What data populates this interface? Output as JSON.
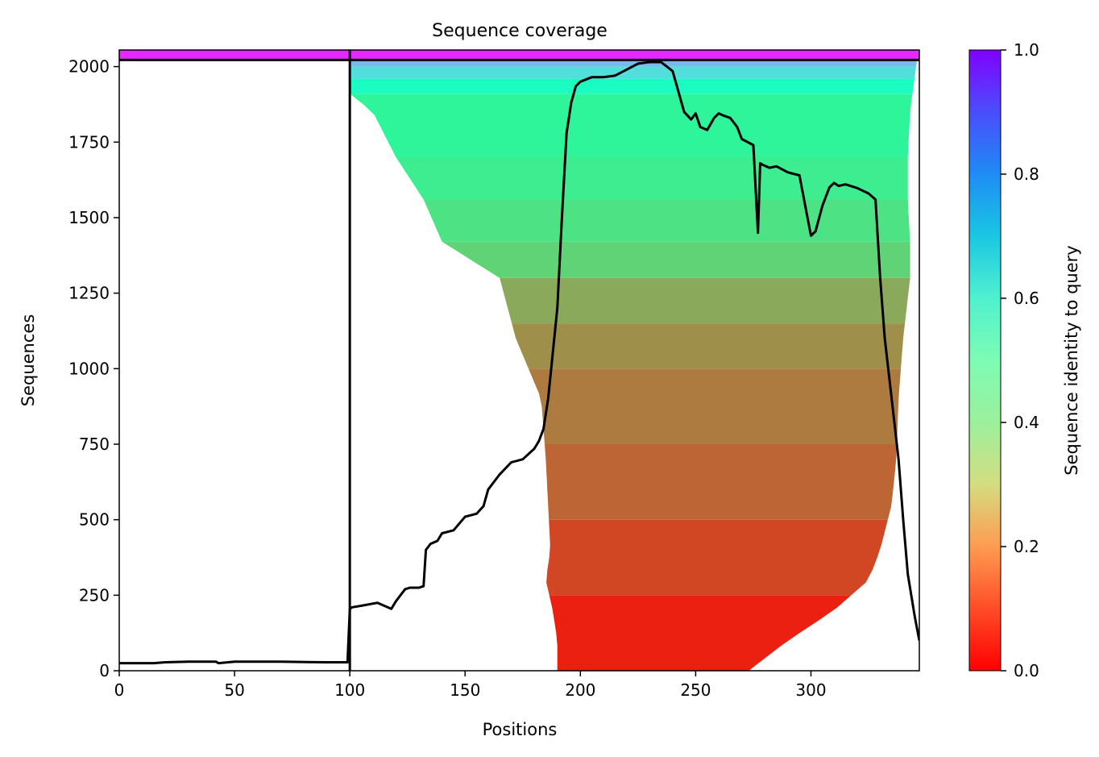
{
  "chart_data": {
    "type": "heatmap",
    "title": "Sequence coverage",
    "xlabel": "Positions",
    "ylabel": "Sequences",
    "xlim": [
      0,
      347
    ],
    "ylim": [
      0,
      2055
    ],
    "x_ticks": [
      0,
      50,
      100,
      150,
      200,
      250,
      300
    ],
    "y_ticks": [
      0,
      250,
      500,
      750,
      1000,
      1250,
      1500,
      1750,
      2000
    ],
    "colorbar": {
      "label": "Sequence identity to query",
      "range": [
        0.0,
        1.0
      ],
      "ticks": [
        "0.0",
        "0.2",
        "0.4",
        "0.6",
        "0.8",
        "1.0"
      ],
      "colormap": "rainbow_r"
    },
    "vertical_line_x": 100,
    "horizontal_line_y": 2022,
    "query_rows": {
      "from": 2022,
      "to": 2055,
      "identity": 0.95
    },
    "identity_bands": [
      {
        "y0": 0,
        "y1": 250,
        "identity": 0.04
      },
      {
        "y0": 250,
        "y1": 500,
        "identity": 0.09
      },
      {
        "y0": 500,
        "y1": 750,
        "identity": 0.13
      },
      {
        "y0": 750,
        "y1": 1000,
        "identity": 0.16
      },
      {
        "y0": 1000,
        "y1": 1150,
        "identity": 0.19
      },
      {
        "y0": 1150,
        "y1": 1300,
        "identity": 0.23
      },
      {
        "y0": 1300,
        "y1": 1420,
        "identity": 0.31
      },
      {
        "y0": 1420,
        "y1": 1560,
        "identity": 0.35
      },
      {
        "y0": 1560,
        "y1": 1700,
        "identity": 0.38
      },
      {
        "y0": 1700,
        "y1": 1910,
        "identity": 0.41
      },
      {
        "y0": 1910,
        "y1": 1960,
        "identity": 0.55
      },
      {
        "y0": 1960,
        "y1": 2000,
        "identity": 0.66
      },
      {
        "y0": 2000,
        "y1": 2022,
        "identity": 0.74
      }
    ],
    "coverage_extent": [
      {
        "y": 0,
        "x0": 190,
        "x1": 273
      },
      {
        "y": 100,
        "x0": 190,
        "x1": 290
      },
      {
        "y": 200,
        "x0": 188,
        "x1": 310
      },
      {
        "y": 300,
        "x0": 185,
        "x1": 325
      },
      {
        "y": 400,
        "x0": 187,
        "x1": 330
      },
      {
        "y": 550,
        "x0": 186,
        "x1": 335
      },
      {
        "y": 700,
        "x0": 185,
        "x1": 337
      },
      {
        "y": 900,
        "x0": 183,
        "x1": 338
      },
      {
        "y": 1100,
        "x0": 172,
        "x1": 340
      },
      {
        "y": 1300,
        "x0": 165,
        "x1": 343
      },
      {
        "y": 1420,
        "x0": 140,
        "x1": 343
      },
      {
        "y": 1560,
        "x0": 132,
        "x1": 342
      },
      {
        "y": 1700,
        "x0": 120,
        "x1": 342
      },
      {
        "y": 1850,
        "x0": 110,
        "x1": 343
      },
      {
        "y": 1910,
        "x0": 100,
        "x1": 344
      },
      {
        "y": 2022,
        "x0": 100,
        "x1": 346
      }
    ],
    "series": [
      {
        "type": "line",
        "color": "#000000",
        "x": [
          0,
          15,
          20,
          30,
          42,
          43,
          50,
          70,
          90,
          99,
          100,
          101,
          105,
          112,
          118,
          120,
          124,
          126,
          130,
          132,
          133,
          135,
          138,
          140,
          145,
          150,
          155,
          158,
          160,
          165,
          170,
          175,
          180,
          182,
          184,
          186,
          188,
          190,
          192,
          194,
          196,
          198,
          200,
          205,
          210,
          215,
          220,
          225,
          230,
          235,
          240,
          245,
          248,
          250,
          252,
          255,
          258,
          260,
          262,
          265,
          268,
          270,
          275,
          277,
          278,
          279,
          282,
          285,
          290,
          295,
          300,
          302,
          305,
          308,
          310,
          312,
          315,
          320,
          325,
          328,
          330,
          332,
          335,
          338,
          340,
          342,
          345,
          347
        ],
        "y": [
          25,
          25,
          28,
          30,
          30,
          25,
          30,
          30,
          28,
          28,
          205,
          210,
          215,
          225,
          205,
          230,
          270,
          275,
          275,
          280,
          400,
          420,
          430,
          455,
          465,
          510,
          520,
          545,
          600,
          650,
          690,
          700,
          735,
          760,
          800,
          900,
          1050,
          1200,
          1500,
          1780,
          1880,
          1935,
          1950,
          1965,
          1965,
          1970,
          1990,
          2010,
          2015,
          2015,
          1985,
          1850,
          1825,
          1845,
          1800,
          1790,
          1830,
          1845,
          1838,
          1830,
          1800,
          1760,
          1740,
          1450,
          1680,
          1675,
          1665,
          1670,
          1650,
          1640,
          1440,
          1455,
          1540,
          1600,
          1615,
          1605,
          1610,
          1598,
          1580,
          1560,
          1300,
          1100,
          900,
          700,
          500,
          320,
          180,
          100
        ]
      }
    ]
  }
}
